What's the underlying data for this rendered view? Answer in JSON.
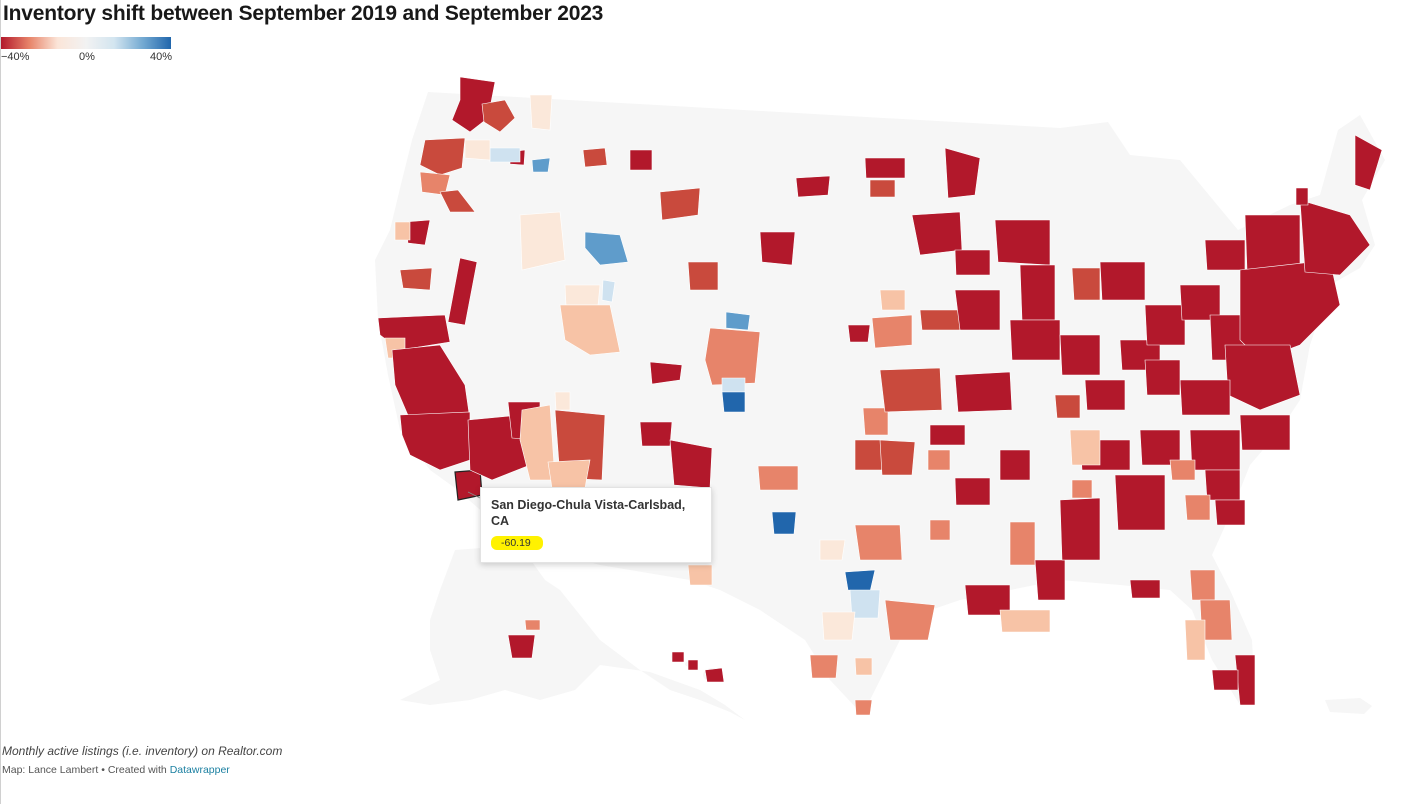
{
  "title": "Inventory shift between September 2019 and September 2023",
  "legend": {
    "labels": [
      "−40%",
      "0%",
      "40%"
    ],
    "colors": [
      "#b2182b",
      "#e7846a",
      "#fbe5d8",
      "#f2f2f2",
      "#d3e5f0",
      "#74aad2",
      "#2166ac"
    ]
  },
  "colors": {
    "land": "#f6f6f6",
    "borders": "#ffffff",
    "dark_red": "#b2182b",
    "red": "#c94a3d",
    "orange": "#e7846a",
    "peach": "#f7c3a6",
    "cream": "#fbe8da",
    "pale_blue": "#cfe2f0",
    "mid_blue": "#5f9ccb",
    "dark_blue": "#2166ac",
    "highlight": "#fff200"
  },
  "tooltip": {
    "metro": "San Diego-Chula Vista-Carlsbad, CA",
    "value": "-60.19"
  },
  "notes": "Monthly active listings (i.e. inventory) on Realtor.com",
  "byline": {
    "text": "Map: Lance Lambert • Created with",
    "link": "Datawrapper"
  }
}
